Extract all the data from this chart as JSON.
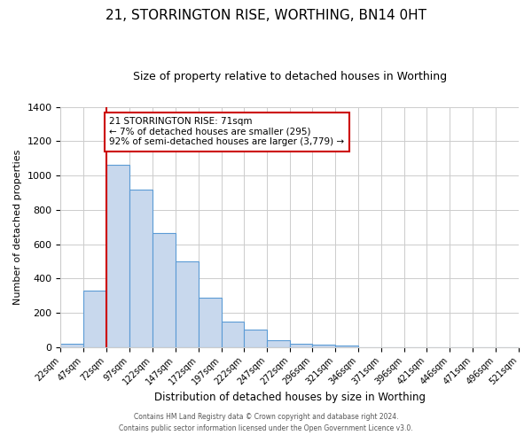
{
  "title": "21, STORRINGTON RISE, WORTHING, BN14 0HT",
  "subtitle": "Size of property relative to detached houses in Worthing",
  "xlabel": "Distribution of detached houses by size in Worthing",
  "ylabel": "Number of detached properties",
  "bin_labels": [
    "22sqm",
    "47sqm",
    "72sqm",
    "97sqm",
    "122sqm",
    "147sqm",
    "172sqm",
    "197sqm",
    "222sqm",
    "247sqm",
    "272sqm",
    "296sqm",
    "321sqm",
    "346sqm",
    "371sqm",
    "396sqm",
    "421sqm",
    "446sqm",
    "471sqm",
    "496sqm",
    "521sqm"
  ],
  "bar_edges": [
    22,
    47,
    72,
    97,
    122,
    147,
    172,
    197,
    222,
    247,
    272,
    296,
    321,
    346,
    371,
    396,
    421,
    446,
    471,
    496,
    521
  ],
  "bar_heights": [
    20,
    330,
    1060,
    920,
    665,
    500,
    290,
    150,
    100,
    40,
    20,
    15,
    10,
    0,
    0,
    0,
    0,
    0,
    0,
    0
  ],
  "property_line_x": 72,
  "ylim": [
    0,
    1400
  ],
  "yticks": [
    0,
    200,
    400,
    600,
    800,
    1000,
    1200,
    1400
  ],
  "bar_color": "#c8d8ed",
  "bar_edge_color": "#5b9bd5",
  "vline_color": "#cc0000",
  "annotation_text": "21 STORRINGTON RISE: 71sqm\n← 7% of detached houses are smaller (295)\n92% of semi-detached houses are larger (3,779) →",
  "annotation_box_color": "#ffffff",
  "annotation_box_edge": "#cc0000",
  "footer1": "Contains HM Land Registry data © Crown copyright and database right 2024.",
  "footer2": "Contains public sector information licensed under the Open Government Licence v3.0.",
  "background_color": "#ffffff",
  "grid_color": "#cccccc",
  "title_fontsize": 11,
  "subtitle_fontsize": 9
}
